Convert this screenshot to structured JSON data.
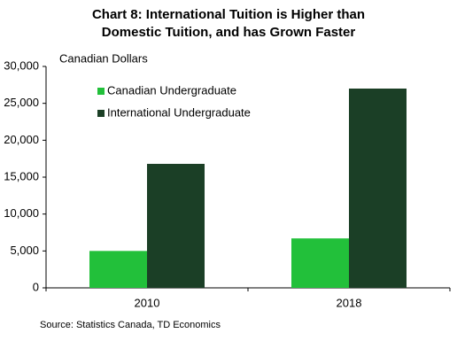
{
  "chart_data": {
    "type": "bar",
    "title": [
      "Chart 8: International Tuition is Higher than",
      "Domestic Tuition, and has Grown Faster"
    ],
    "y_label": "Canadian Dollars",
    "source": "Source:  Statistics Canada,  TD  Economics",
    "categories": [
      "2010",
      "2018"
    ],
    "series": [
      {
        "name": "Canadian Undergraduate",
        "color": "#22c03a",
        "values": [
          5000,
          6700
        ]
      },
      {
        "name": "International Undergraduate",
        "color": "#1b3f26",
        "values": [
          16800,
          27000
        ]
      }
    ],
    "ylim": [
      0,
      30000
    ],
    "yticks": [
      0,
      {
        "value": 5000,
        "label": "5,000"
      },
      {
        "value": 10000,
        "label": "10,000"
      },
      {
        "value": 15000,
        "label": "15,000"
      },
      {
        "value": 20000,
        "label": "20,000"
      },
      {
        "value": 25000,
        "label": "25,000"
      },
      {
        "value": 30000,
        "label": "30,000"
      }
    ],
    "grid": false,
    "legend": "top-left"
  }
}
